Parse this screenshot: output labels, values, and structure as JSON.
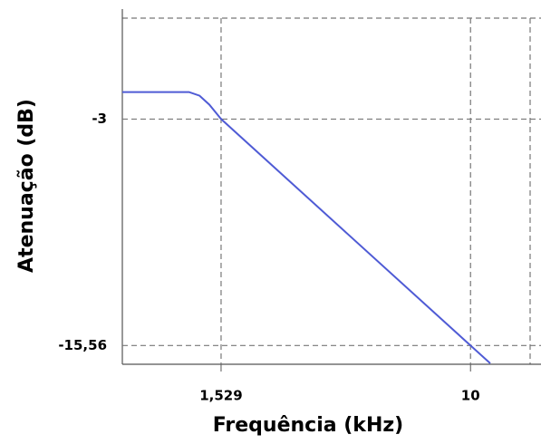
{
  "chart_data": {
    "type": "line",
    "xlabel": "Frequência (kHz)",
    "ylabel": "Atenuação (dB)",
    "xscale": "log",
    "grid": true,
    "xlim": [
      0.727,
      17
    ],
    "ylim": [
      -16.6,
      2.6
    ],
    "xticks": [
      {
        "value": 1.529,
        "label": "1,529"
      },
      10
    ],
    "yticks": [
      -3,
      {
        "value": -15.56,
        "label": "-15,56"
      }
    ],
    "series": [
      {
        "color": "#4f5bd5",
        "x": [
          0.727,
          1.2,
          1.3,
          1.4,
          1.529,
          10,
          11.6
        ],
        "values": [
          -1.5,
          -1.5,
          -1.7,
          -2.2,
          -3,
          -15.56,
          -16.55
        ]
      }
    ]
  }
}
